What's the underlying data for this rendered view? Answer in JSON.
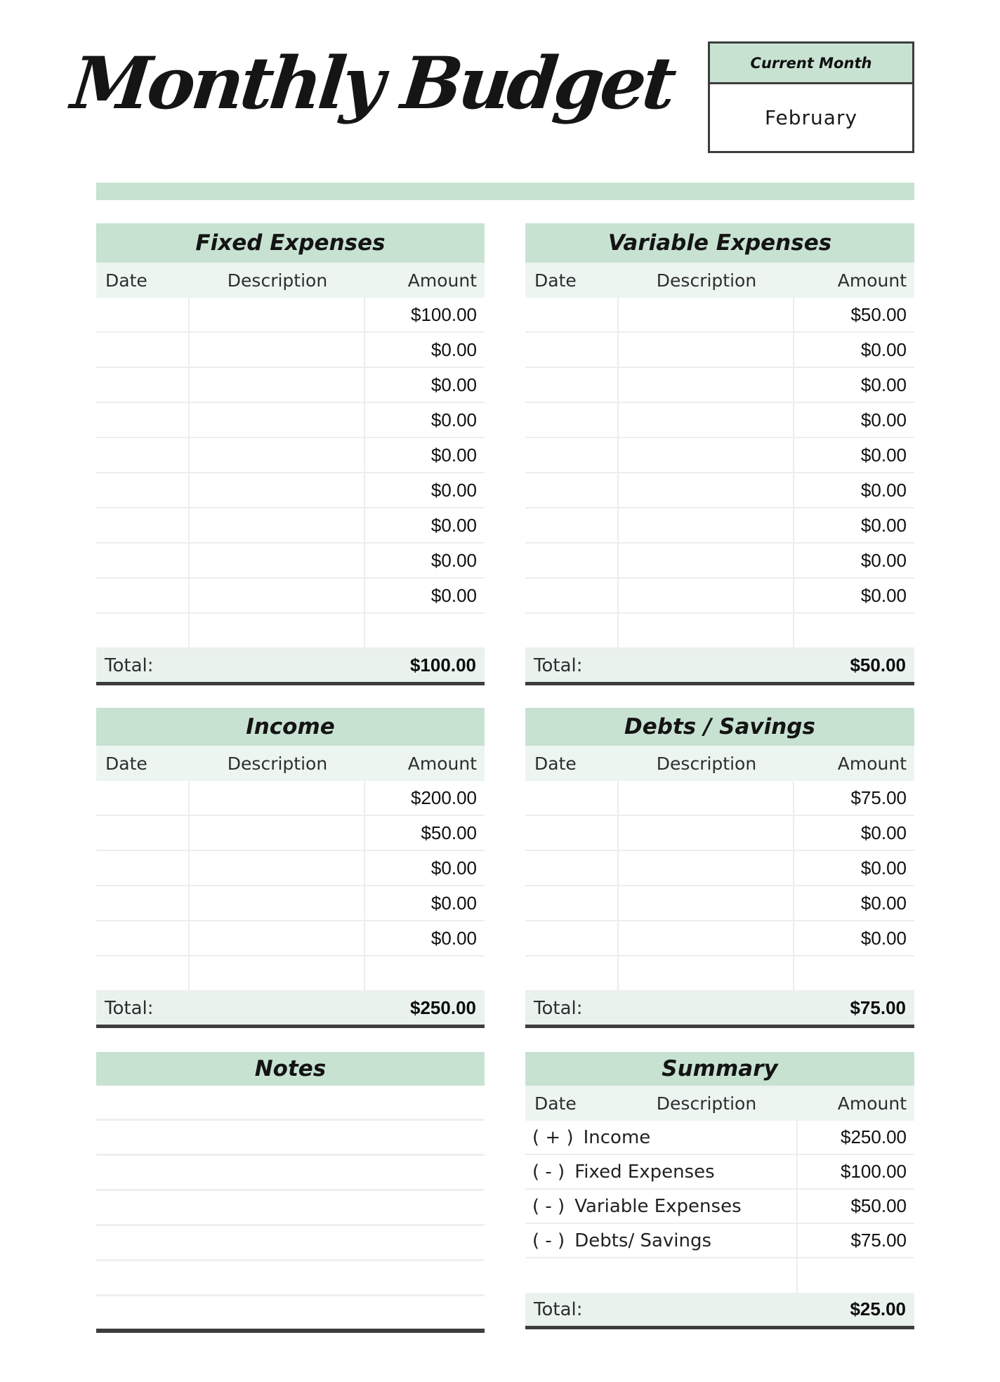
{
  "title": "Monthly Budget",
  "current_month": {
    "label": "Current Month",
    "value": "February"
  },
  "columns": {
    "date": "Date",
    "description": "Description",
    "amount": "Amount"
  },
  "total_label": "Total:",
  "tables": {
    "fixed": {
      "title": "Fixed Expenses",
      "amounts": [
        "$100.00",
        "$0.00",
        "$0.00",
        "$0.00",
        "$0.00",
        "$0.00",
        "$0.00",
        "$0.00",
        "$0.00",
        ""
      ],
      "total": "$100.00"
    },
    "variable": {
      "title": "Variable Expenses",
      "amounts": [
        "$50.00",
        "$0.00",
        "$0.00",
        "$0.00",
        "$0.00",
        "$0.00",
        "$0.00",
        "$0.00",
        "$0.00",
        ""
      ],
      "total": "$50.00"
    },
    "income": {
      "title": "Income",
      "amounts": [
        "$200.00",
        "$50.00",
        "$0.00",
        "$0.00",
        "$0.00",
        ""
      ],
      "total": "$250.00"
    },
    "debts": {
      "title": "Debts / Savings",
      "amounts": [
        "$75.00",
        "$0.00",
        "$0.00",
        "$0.00",
        "$0.00",
        ""
      ],
      "total": "$75.00"
    }
  },
  "notes": {
    "title": "Notes"
  },
  "summary": {
    "title": "Summary",
    "rows": [
      {
        "sign": "( + )",
        "label": "Income",
        "amount": "$250.00"
      },
      {
        "sign": "( - )",
        "label": "Fixed Expenses",
        "amount": "$100.00"
      },
      {
        "sign": "( - )",
        "label": "Variable Expenses",
        "amount": "$50.00"
      },
      {
        "sign": "( - )",
        "label": "Debts/ Savings",
        "amount": "$75.00"
      }
    ],
    "total": "$25.00"
  },
  "theme": {
    "accent_green": "#c8e2d2",
    "header_tint": "#edf5f0",
    "total_tint": "#e9f2ed",
    "line_dark": "#3d3d3d",
    "grid_line": "#ededed",
    "ink": "#1c1c1c"
  }
}
